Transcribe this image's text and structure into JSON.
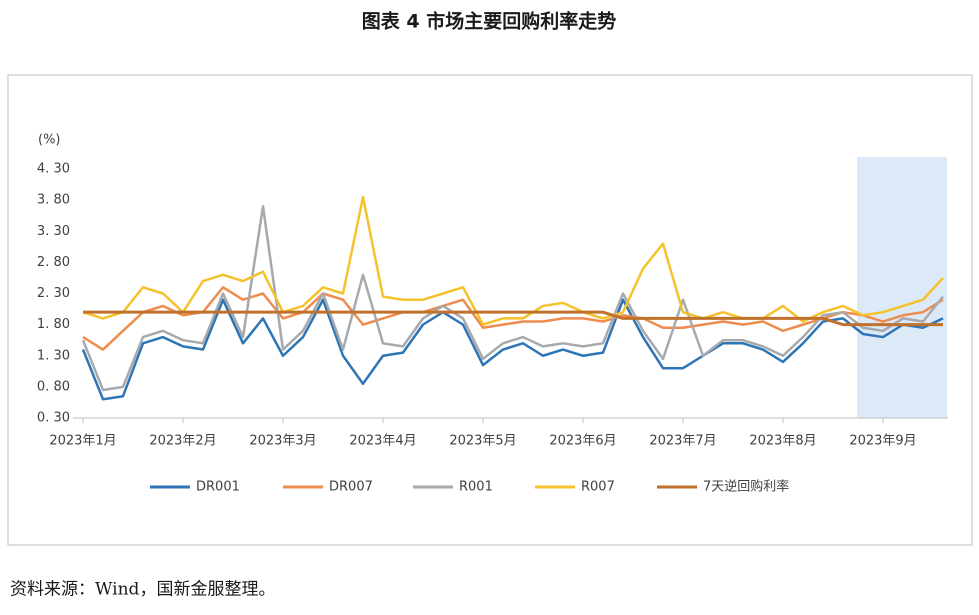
{
  "chart_data": {
    "type": "line",
    "title": "图表 4 市场主要回购利率走势",
    "y_unit": "(%)",
    "source": "资料来源：Wind，国新金服整理。",
    "categories": [
      "2023年1月",
      null,
      null,
      null,
      null,
      "2023年2月",
      null,
      null,
      null,
      null,
      "2023年3月",
      null,
      null,
      null,
      null,
      "2023年4月",
      null,
      null,
      null,
      null,
      "2023年5月",
      null,
      null,
      null,
      null,
      "2023年6月",
      null,
      null,
      null,
      null,
      "2023年7月",
      null,
      null,
      null,
      null,
      "2023年8月",
      null,
      null,
      null,
      null,
      "2023年9月",
      null,
      null,
      null
    ],
    "series": [
      {
        "name": "DR001",
        "color": "#2e75b6",
        "values": [
          1.4,
          0.6,
          0.65,
          1.5,
          1.6,
          1.45,
          1.4,
          2.2,
          1.5,
          1.9,
          1.3,
          1.6,
          2.2,
          1.3,
          0.85,
          1.3,
          1.35,
          1.8,
          2.0,
          1.8,
          1.15,
          1.4,
          1.5,
          1.3,
          1.4,
          1.3,
          1.35,
          2.2,
          1.6,
          1.1,
          1.1,
          1.3,
          1.5,
          1.5,
          1.4,
          1.2,
          1.5,
          1.85,
          1.9,
          1.65,
          1.6,
          1.8,
          1.75,
          1.9
        ]
      },
      {
        "name": "DR007",
        "color": "#ee8c4e",
        "values": [
          1.6,
          1.4,
          1.7,
          2.0,
          2.1,
          1.95,
          2.0,
          2.4,
          2.2,
          2.3,
          1.9,
          2.0,
          2.3,
          2.2,
          1.8,
          1.9,
          2.0,
          2.0,
          2.1,
          2.2,
          1.75,
          1.8,
          1.85,
          1.85,
          1.9,
          1.9,
          1.85,
          1.95,
          1.9,
          1.75,
          1.75,
          1.8,
          1.85,
          1.8,
          1.85,
          1.7,
          1.8,
          1.9,
          2.0,
          1.95,
          1.85,
          1.95,
          2.0,
          2.2
        ]
      },
      {
        "name": "R001",
        "color": "#a6a9ae",
        "values": [
          1.55,
          0.75,
          0.8,
          1.6,
          1.7,
          1.55,
          1.5,
          2.3,
          1.6,
          3.7,
          1.4,
          1.7,
          2.3,
          1.4,
          2.6,
          1.5,
          1.45,
          1.9,
          2.1,
          1.9,
          1.25,
          1.5,
          1.6,
          1.45,
          1.5,
          1.45,
          1.5,
          2.3,
          1.7,
          1.25,
          2.2,
          1.3,
          1.55,
          1.55,
          1.45,
          1.3,
          1.6,
          1.95,
          2.0,
          1.75,
          1.7,
          1.9,
          1.85,
          2.25
        ]
      },
      {
        "name": "R007",
        "color": "#f5c22b",
        "values": [
          2.0,
          1.9,
          2.0,
          2.4,
          2.3,
          2.0,
          2.5,
          2.6,
          2.5,
          2.65,
          2.0,
          2.1,
          2.4,
          2.3,
          3.85,
          2.25,
          2.2,
          2.2,
          2.3,
          2.4,
          1.8,
          1.9,
          1.9,
          2.1,
          2.15,
          2.0,
          1.9,
          2.0,
          2.7,
          3.1,
          2.0,
          1.9,
          2.0,
          1.9,
          1.9,
          2.1,
          1.85,
          2.0,
          2.1,
          1.95,
          2.0,
          2.1,
          2.2,
          2.55
        ]
      },
      {
        "name": "7天逆回购利率",
        "color": "#c0722c",
        "values": [
          2.0,
          2.0,
          2.0,
          2.0,
          2.0,
          2.0,
          2.0,
          2.0,
          2.0,
          2.0,
          2.0,
          2.0,
          2.0,
          2.0,
          2.0,
          2.0,
          2.0,
          2.0,
          2.0,
          2.0,
          2.0,
          2.0,
          2.0,
          2.0,
          2.0,
          2.0,
          2.0,
          1.9,
          1.9,
          1.9,
          1.9,
          1.9,
          1.9,
          1.9,
          1.9,
          1.9,
          1.9,
          1.9,
          1.8,
          1.8,
          1.8,
          1.8,
          1.8,
          1.8
        ]
      }
    ],
    "ylim": [
      0.3,
      4.3
    ],
    "yticks": [
      {
        "value": 0.3,
        "label": "0. 30"
      },
      {
        "value": 0.8,
        "label": "0. 80"
      },
      {
        "value": 1.3,
        "label": "1. 30"
      },
      {
        "value": 1.8,
        "label": "1. 80"
      },
      {
        "value": 2.3,
        "label": "2. 30"
      },
      {
        "value": 2.8,
        "label": "2. 80"
      },
      {
        "value": 3.3,
        "label": "3. 30"
      },
      {
        "value": 3.8,
        "label": "3. 80"
      },
      {
        "value": 4.3,
        "label": "4. 30"
      }
    ],
    "grid": false,
    "legend": "bottom"
  }
}
